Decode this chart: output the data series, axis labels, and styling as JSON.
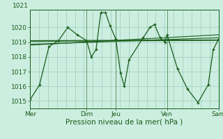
{
  "background_color": "#cceee0",
  "grid_color_major": "#99ccbb",
  "grid_color_minor": "#bbddd0",
  "line_color": "#1a5c1a",
  "xlabel": "Pression niveau de la mer( hPa )",
  "xtick_labels": [
    "Mer",
    "",
    "",
    "",
    "",
    "",
    "Dim",
    "Jeu",
    "",
    "",
    "",
    "",
    "",
    "",
    "Ven",
    "",
    "",
    "",
    "",
    "",
    "Sam"
  ],
  "xtick_day_labels": [
    "Mer",
    "Dim",
    "Jeu",
    "Ven",
    "Sam"
  ],
  "xtick_day_positions": [
    0,
    0.3,
    0.455,
    0.727,
    1.0
  ],
  "ytick_labels": [
    "1015",
    "1016",
    "1017",
    "1018",
    "1019",
    "1020"
  ],
  "ytick_top_label": "1021",
  "ylim": [
    1014.5,
    1021.2
  ],
  "series": [
    [
      0.0,
      1015.1
    ],
    [
      0.05,
      1016.1
    ],
    [
      0.1,
      1018.7
    ],
    [
      0.15,
      1019.1
    ],
    [
      0.2,
      1020.0
    ],
    [
      0.25,
      1019.5
    ],
    [
      0.3,
      1019.1
    ],
    [
      0.325,
      1018.0
    ],
    [
      0.35,
      1018.5
    ],
    [
      0.375,
      1021.0
    ],
    [
      0.4,
      1021.0
    ],
    [
      0.425,
      1020.1
    ],
    [
      0.455,
      1019.2
    ],
    [
      0.48,
      1016.9
    ],
    [
      0.5,
      1016.0
    ],
    [
      0.525,
      1017.8
    ],
    [
      0.6,
      1019.3
    ],
    [
      0.636,
      1020.0
    ],
    [
      0.66,
      1020.2
    ],
    [
      0.69,
      1019.3
    ],
    [
      0.715,
      1019.0
    ],
    [
      0.727,
      1019.5
    ],
    [
      0.782,
      1017.2
    ],
    [
      0.836,
      1015.8
    ],
    [
      0.891,
      1014.9
    ],
    [
      0.945,
      1016.1
    ],
    [
      0.972,
      1018.5
    ],
    [
      1.0,
      1019.2
    ]
  ],
  "trend_lines": [
    [
      [
        0.0,
        1.0
      ],
      [
        1019.05,
        1019.12
      ]
    ],
    [
      [
        0.0,
        1.0
      ],
      [
        1018.85,
        1019.3
      ]
    ],
    [
      [
        0.0,
        1.0
      ],
      [
        1018.8,
        1019.5
      ]
    ],
    [
      [
        0.0,
        1.0
      ],
      [
        1019.1,
        1019.15
      ]
    ]
  ],
  "vline_positions": [
    0.0,
    0.3,
    0.455,
    0.727,
    1.0
  ],
  "tick_fontsize": 6.5,
  "xlabel_fontsize": 7.5
}
